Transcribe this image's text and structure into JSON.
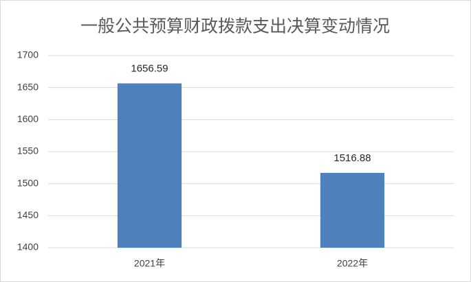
{
  "chart_data": {
    "type": "bar",
    "title": "一般公共预算财政拨款支出决算变动情况",
    "categories": [
      "2021年",
      "2022年"
    ],
    "values": [
      1656.59,
      1516.88
    ],
    "color": "#4f81bd",
    "ylim": [
      1400,
      1700
    ],
    "yticks": [
      1400,
      1450,
      1500,
      1550,
      1600,
      1650,
      1700
    ],
    "grid": true
  }
}
